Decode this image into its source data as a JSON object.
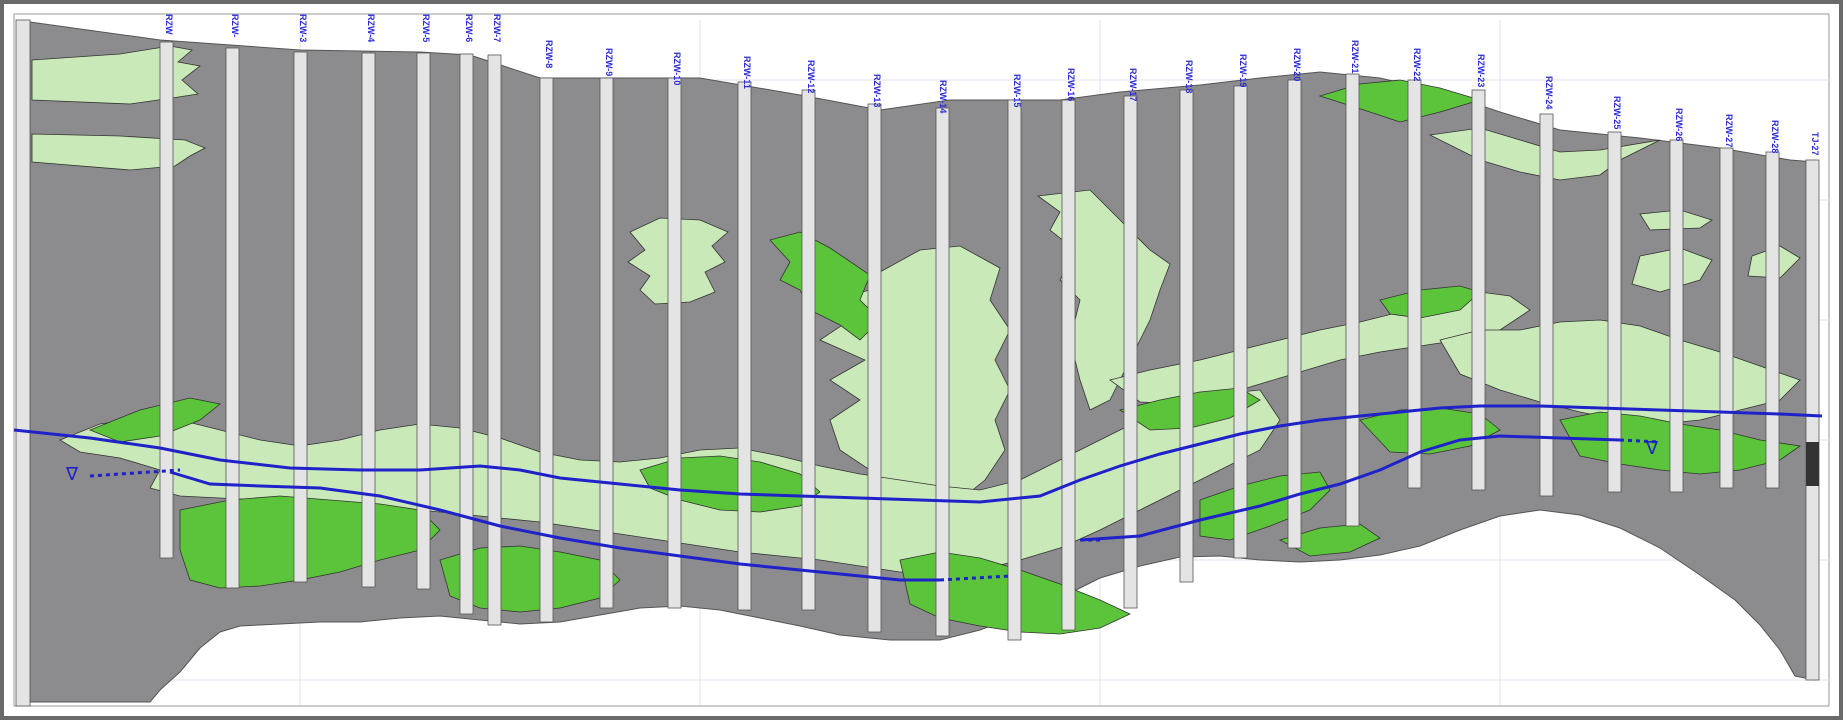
{
  "colors": {
    "frame": "#6a6a6a",
    "clay_gray": "#8c8c8e",
    "sand_light": "#c9eab8",
    "gravel_green": "#5cc43a",
    "water_line": "#1f22c8",
    "label": "#2b2bd8",
    "borehole_fill": "#e4e4e4",
    "paper": "#ffffff"
  },
  "boreholes": [
    {
      "id": "RZW"
    },
    {
      "id": "RZW-"
    },
    {
      "id": "RZW-3"
    },
    {
      "id": "RZW-4"
    },
    {
      "id": "RZW-5"
    },
    {
      "id": "RZW-6"
    },
    {
      "id": "RZW-7"
    },
    {
      "id": "RZW-8"
    },
    {
      "id": "RZW-9"
    },
    {
      "id": "RZW-10"
    },
    {
      "id": "RZW-11"
    },
    {
      "id": "RZW-12"
    },
    {
      "id": "RZW-13"
    },
    {
      "id": "RZW-14"
    },
    {
      "id": "RZW-15"
    },
    {
      "id": "RZW-16"
    },
    {
      "id": "RZW-17"
    },
    {
      "id": "RZW-18"
    },
    {
      "id": "RZW-19"
    },
    {
      "id": "RZW-20"
    },
    {
      "id": "RZW-21"
    },
    {
      "id": "RZW-22"
    },
    {
      "id": "RZW-23"
    },
    {
      "id": "RZW-24"
    },
    {
      "id": "RZW-25"
    },
    {
      "id": "RZW-26"
    },
    {
      "id": "RZW-27"
    },
    {
      "id": "RZW-28"
    },
    {
      "id": "TJ-27"
    }
  ],
  "symbols": {
    "water_table_left": "∇",
    "water_table_right": "∇"
  }
}
